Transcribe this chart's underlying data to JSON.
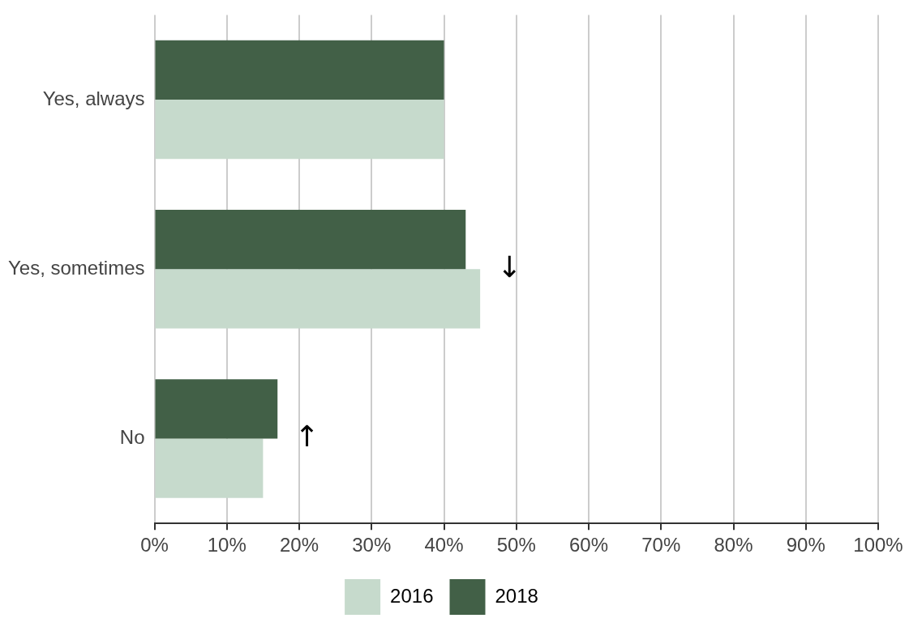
{
  "chart_data": {
    "type": "bar",
    "orientation": "horizontal",
    "categories": [
      "Yes, always",
      "Yes, sometimes",
      "No"
    ],
    "series": [
      {
        "name": "2016",
        "color": "#c6dacc",
        "values": [
          40,
          45,
          15
        ]
      },
      {
        "name": "2018",
        "color": "#426047",
        "values": [
          40,
          43,
          17
        ]
      }
    ],
    "xlim": [
      0,
      100
    ],
    "xticks": [
      {
        "value": 0,
        "label": "0%"
      },
      {
        "value": 10,
        "label": "10%"
      },
      {
        "value": 20,
        "label": "20%"
      },
      {
        "value": 30,
        "label": "30%"
      },
      {
        "value": 40,
        "label": "40%"
      },
      {
        "value": 50,
        "label": "50%"
      },
      {
        "value": 60,
        "label": "60%"
      },
      {
        "value": 70,
        "label": "70%"
      },
      {
        "value": 80,
        "label": "80%"
      },
      {
        "value": 90,
        "label": "90%"
      },
      {
        "value": 100,
        "label": "100%"
      }
    ],
    "annotations": [
      {
        "text": "↓",
        "x": 45,
        "y": "Yes, sometimes"
      },
      {
        "text": "↑",
        "x": 17,
        "y": "No"
      }
    ],
    "grid": "x",
    "legend": "bottom"
  }
}
